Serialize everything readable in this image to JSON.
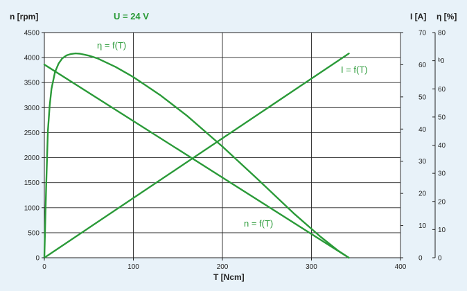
{
  "chart_data": {
    "type": "line",
    "title": "U = 24 V",
    "xlabel": "T [Ncm]",
    "ylabel_left": "n [rpm]",
    "ylabel_right1": "I [A]",
    "ylabel_right2": "η [%]",
    "xlim": [
      0,
      400
    ],
    "ylim_left": [
      0,
      4500
    ],
    "ylim_right1": [
      0,
      70
    ],
    "ylim_right2": [
      0,
      80
    ],
    "x_ticks": [
      0,
      100,
      200,
      300,
      400
    ],
    "y_left_ticks": [
      0,
      500,
      1000,
      1500,
      2000,
      2500,
      3000,
      3500,
      4000,
      4500
    ],
    "y_right1_ticks": [
      0,
      10,
      20,
      30,
      40,
      50,
      60,
      70
    ],
    "y_right2_ticks": [
      0,
      10,
      20,
      30,
      40,
      50,
      60,
      70,
      80
    ],
    "y_right2_tick_labels": [
      "0",
      "10",
      "20",
      "30",
      "40",
      "50",
      "60",
      "ᵇ0",
      "80"
    ],
    "grid": true,
    "series": [
      {
        "name": "n = f(T)",
        "axis": "left",
        "color": "#2a9a38",
        "x": [
          0,
          342
        ],
        "y": [
          3860,
          0
        ]
      },
      {
        "name": "I = f(T)",
        "axis": "right1",
        "color": "#2a9a38",
        "x": [
          0,
          342
        ],
        "y": [
          0,
          63.5
        ]
      },
      {
        "name": "η = f(T)",
        "axis": "right2",
        "color": "#2a9a38",
        "x": [
          0,
          2,
          4,
          6,
          8,
          12,
          16,
          20,
          25,
          30,
          35,
          40,
          50,
          60,
          80,
          100,
          130,
          160,
          200,
          240,
          280,
          310,
          330,
          342
        ],
        "y": [
          0,
          25,
          45,
          54,
          60,
          66,
          69,
          70.8,
          71.9,
          72.4,
          72.6,
          72.5,
          71.8,
          70.8,
          67.8,
          64.2,
          57.8,
          50.5,
          39.5,
          27.8,
          15.8,
          7.5,
          2.5,
          0
        ]
      }
    ],
    "annotations": [
      {
        "text": "η = f(T)",
        "series": "η = f(T)"
      },
      {
        "text": "I = f(T)",
        "series": "I = f(T)"
      },
      {
        "text": "n = f(T)",
        "series": "n = f(T)"
      }
    ]
  }
}
